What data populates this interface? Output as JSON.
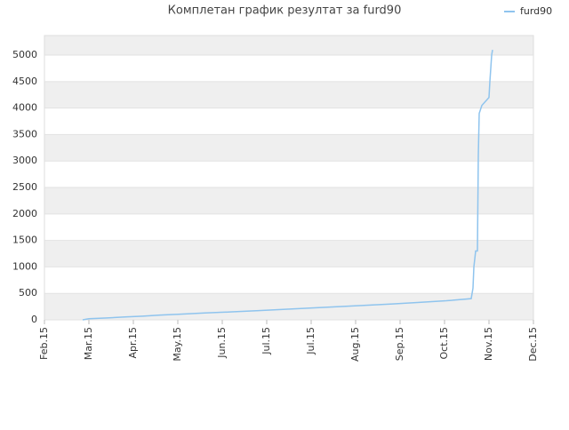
{
  "chart_data": {
    "type": "line",
    "title": "Комплетан график резултат за furd90",
    "x": [
      0.86,
      1.0,
      1.41,
      1.81,
      2.21,
      2.61,
      3.01,
      3.61,
      4.22,
      4.82,
      5.42,
      6.02,
      6.63,
      7.23,
      7.83,
      8.43,
      9.04,
      9.6,
      9.64,
      9.66,
      9.7,
      9.74,
      9.76,
      9.78,
      9.84,
      10.0,
      10.02,
      10.06,
      10.08
    ],
    "series": [
      {
        "name": "furd90",
        "color": "#8fc4ee",
        "values": [
          0,
          20,
          35,
          55,
          70,
          90,
          105,
          130,
          150,
          175,
          200,
          225,
          250,
          275,
          300,
          330,
          360,
          400,
          600,
          1000,
          1300,
          1300,
          3100,
          3900,
          4050,
          4200,
          4500,
          5000,
          5100
        ]
      }
    ],
    "xlim": [
      0,
      11
    ],
    "xticks": [
      {
        "value": 0,
        "label": "Feb.15"
      },
      {
        "value": 1,
        "label": "Mar.15"
      },
      {
        "value": 2,
        "label": "Apr.15"
      },
      {
        "value": 3,
        "label": "May.15"
      },
      {
        "value": 4,
        "label": "Jun.15"
      },
      {
        "value": 5,
        "label": "Jul.15"
      },
      {
        "value": 6,
        "label": "Jul.15"
      },
      {
        "value": 7,
        "label": "Aug.15"
      },
      {
        "value": 8,
        "label": "Sep.15"
      },
      {
        "value": 9,
        "label": "Oct.15"
      },
      {
        "value": 10,
        "label": "Nov.15"
      },
      {
        "value": 11,
        "label": "Dec.15"
      }
    ],
    "ylim": [
      0,
      5370
    ],
    "yticks": [
      0,
      500,
      1000,
      1500,
      2000,
      2500,
      3000,
      3500,
      4000,
      4500,
      5000
    ],
    "grid": true,
    "legend": "top-right"
  }
}
